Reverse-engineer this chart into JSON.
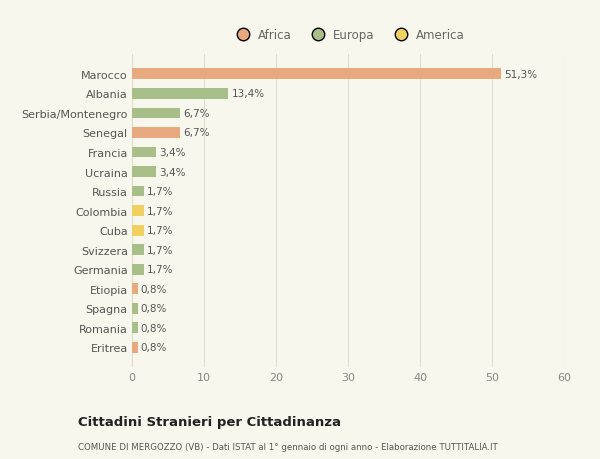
{
  "categories": [
    "Marocco",
    "Albania",
    "Serbia/Montenegro",
    "Senegal",
    "Francia",
    "Ucraina",
    "Russia",
    "Colombia",
    "Cuba",
    "Svizzera",
    "Germania",
    "Etiopia",
    "Spagna",
    "Romania",
    "Eritrea"
  ],
  "values": [
    51.3,
    13.4,
    6.7,
    6.7,
    3.4,
    3.4,
    1.7,
    1.7,
    1.7,
    1.7,
    1.7,
    0.8,
    0.8,
    0.8,
    0.8
  ],
  "labels": [
    "51,3%",
    "13,4%",
    "6,7%",
    "6,7%",
    "3,4%",
    "3,4%",
    "1,7%",
    "1,7%",
    "1,7%",
    "1,7%",
    "1,7%",
    "0,8%",
    "0,8%",
    "0,8%",
    "0,8%"
  ],
  "continents": [
    "Africa",
    "Europa",
    "Europa",
    "Africa",
    "Europa",
    "Europa",
    "Europa",
    "America",
    "America",
    "Europa",
    "Europa",
    "Africa",
    "Europa",
    "Europa",
    "Africa"
  ],
  "colors": {
    "Africa": "#E8A97E",
    "Europa": "#A8BF8A",
    "America": "#F0D060"
  },
  "xlim": [
    0,
    60
  ],
  "xticks": [
    0,
    10,
    20,
    30,
    40,
    50,
    60
  ],
  "background_color": "#F7F7EE",
  "title": "Cittadini Stranieri per Cittadinanza",
  "subtitle": "COMUNE DI MERGOZZO (VB) - Dati ISTAT al 1° gennaio di ogni anno - Elaborazione TUTTITALIA.IT",
  "grid_color": "#DDDDCC",
  "bar_height": 0.55
}
